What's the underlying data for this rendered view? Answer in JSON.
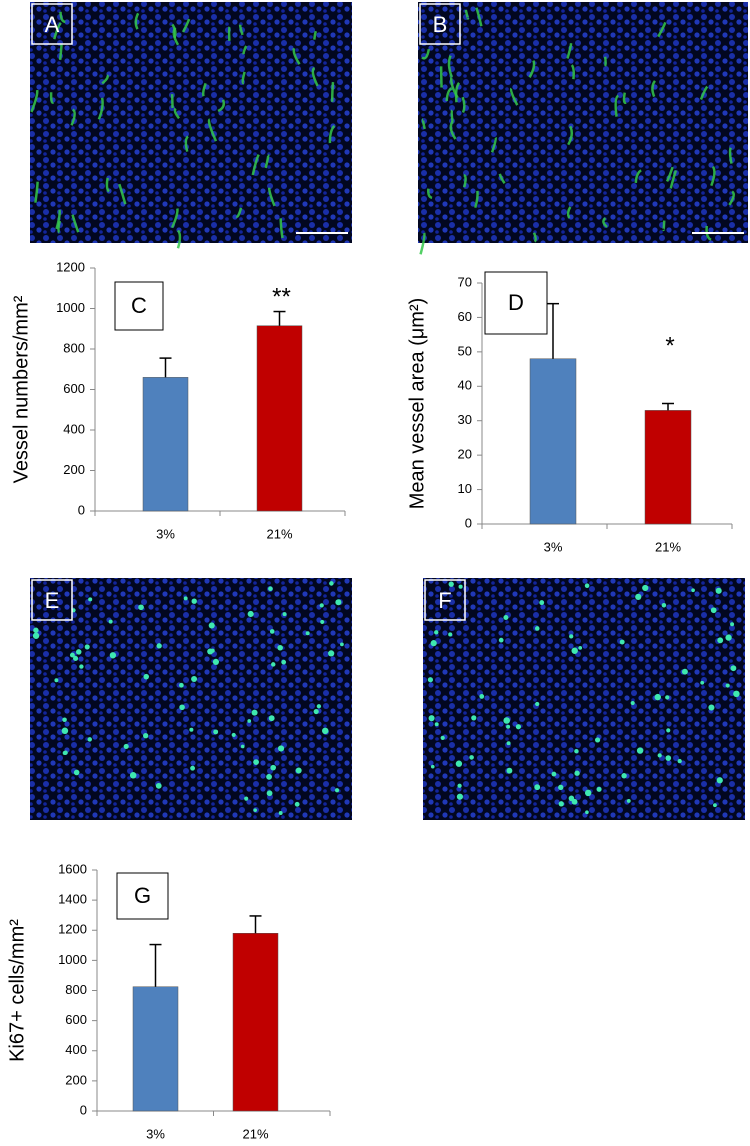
{
  "panels": [
    {
      "label": "A"
    },
    {
      "label": "B"
    },
    {
      "label": "E"
    },
    {
      "label": "F"
    }
  ],
  "chart_data": [
    {
      "type": "bar",
      "panel": "C",
      "y_label": "Vessel numbers/mm²",
      "categories": [
        "3%",
        "21%"
      ],
      "values": [
        660,
        915
      ],
      "errors": [
        95,
        70
      ],
      "colors": [
        "#4f81bd",
        "#c00000"
      ],
      "annotation": "**",
      "ylim": [
        0,
        1200
      ],
      "yticks": [
        0,
        200,
        400,
        600,
        800,
        1000,
        1200
      ]
    },
    {
      "type": "bar",
      "panel": "D",
      "y_label": "Mean vessel area (μm²)",
      "categories": [
        "3%",
        "21%"
      ],
      "values": [
        48,
        33
      ],
      "errors": [
        16,
        2
      ],
      "colors": [
        "#4f81bd",
        "#c00000"
      ],
      "annotation": "*",
      "ylim": [
        0,
        70
      ],
      "yticks": [
        0,
        10,
        20,
        30,
        40,
        50,
        60,
        70
      ]
    },
    {
      "type": "bar",
      "panel": "G",
      "y_label": "Ki67+ cells/mm²",
      "categories": [
        "3%",
        "21%"
      ],
      "values": [
        825,
        1180
      ],
      "errors": [
        280,
        115
      ],
      "colors": [
        "#4f81bd",
        "#c00000"
      ],
      "ylim": [
        0,
        1600
      ],
      "yticks": [
        0,
        200,
        400,
        600,
        800,
        1000,
        1200,
        1400,
        1600
      ]
    }
  ]
}
